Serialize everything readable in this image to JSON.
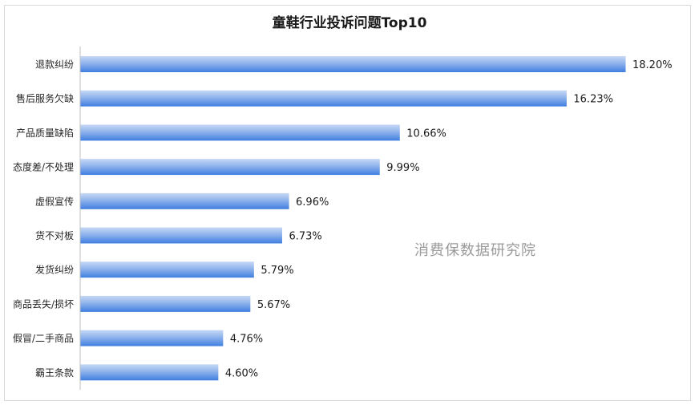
{
  "chart_data": {
    "type": "bar",
    "orientation": "horizontal",
    "title": "童鞋行业投诉问题Top10",
    "categories": [
      "退款纠纷",
      "售后服务欠缺",
      "产品质量缺陷",
      "态度差/不处理",
      "虚假宣传",
      "货不对板",
      "发货纠纷",
      "商品丢失/损坏",
      "假冒/二手商品",
      "霸王条款"
    ],
    "values": [
      18.2,
      16.23,
      10.66,
      9.99,
      6.96,
      6.73,
      5.79,
      5.67,
      4.76,
      4.6
    ],
    "data_labels": [
      "18.20%",
      "16.23%",
      "10.66%",
      "9.99%",
      "6.96%",
      "6.73%",
      "5.79%",
      "5.67%",
      "4.76%",
      "4.60%"
    ],
    "unit": "%",
    "xlim": [
      0,
      18.2
    ],
    "grid": false,
    "bar_color_top": "#c6d9f5",
    "bar_color_bottom": "#3f7fe0"
  },
  "watermark": "消费保数据研究院"
}
